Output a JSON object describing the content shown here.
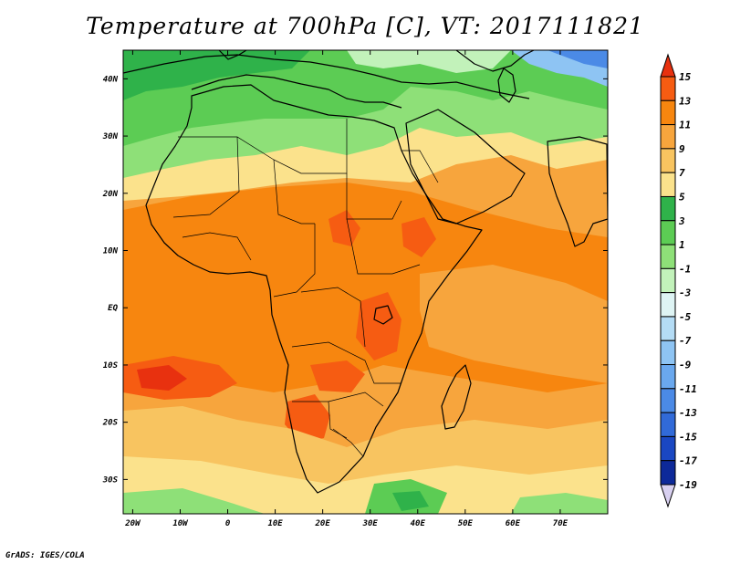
{
  "title": "Temperature at 700hPa [C], VT: 2017111821",
  "credit": "GrADS: IGES/COLA",
  "map": {
    "variable": "Temperature at 700hPa",
    "units": "C",
    "valid_time": "2017111821",
    "lat_range": [
      -36,
      45
    ],
    "lon_range": [
      -22,
      80
    ],
    "lat_labels": [
      "40N",
      "30N",
      "20N",
      "10N",
      "EQ",
      "10S",
      "20S",
      "30S"
    ],
    "lon_labels": [
      "20W",
      "10W",
      "0",
      "10E",
      "20E",
      "30E",
      "40E",
      "50E",
      "60E",
      "70E"
    ]
  },
  "colorbar": {
    "labels": [
      "15",
      "13",
      "11",
      "9",
      "7",
      "5",
      "3",
      "1",
      "-1",
      "-3",
      "-5",
      "-7",
      "-9",
      "-11",
      "-13",
      "-15",
      "-17",
      "-19"
    ],
    "colors": [
      "#e8310f",
      "#f65c12",
      "#f7860f",
      "#f7a53d",
      "#f8c460",
      "#fbe28c",
      "#2fb24a",
      "#5ccc54",
      "#8ee078",
      "#c2f2ba",
      "#def4f4",
      "#b4dcf5",
      "#8ec4f3",
      "#6aa8ee",
      "#4b8ae6",
      "#316ad8",
      "#1a47c2",
      "#0d2999",
      "#08106e"
    ]
  }
}
